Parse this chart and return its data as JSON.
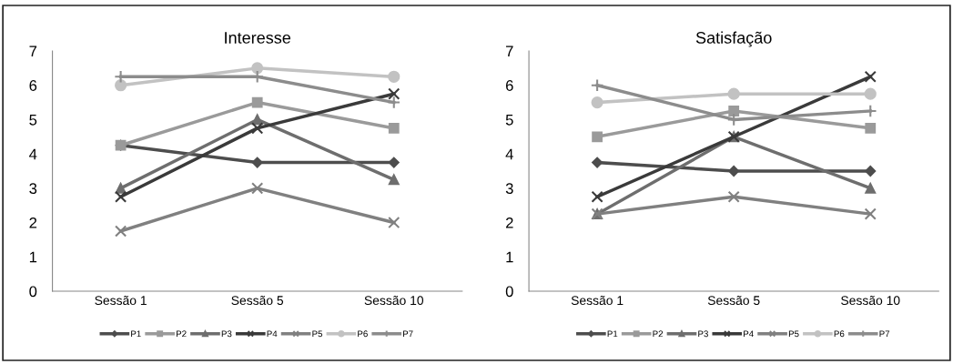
{
  "chart_data": [
    {
      "type": "line",
      "title": "Interesse",
      "categories": [
        "Sessão 1",
        "Sessão 5",
        "Sessão 10"
      ],
      "ylim": [
        0,
        7
      ],
      "yticks": [
        0,
        1,
        2,
        3,
        4,
        5,
        6,
        7
      ],
      "grid": false,
      "legend": "bottom",
      "series": [
        {
          "name": "P1",
          "color": "#4d4d4d",
          "marker": "diamond",
          "values": [
            4.25,
            3.75,
            3.75
          ]
        },
        {
          "name": "P2",
          "color": "#9a9a9a",
          "marker": "square",
          "values": [
            4.25,
            5.5,
            4.75
          ]
        },
        {
          "name": "P3",
          "color": "#6e6e6e",
          "marker": "triangle",
          "values": [
            3,
            5,
            3.25
          ]
        },
        {
          "name": "P4",
          "color": "#3a3a3a",
          "marker": "cross",
          "values": [
            2.75,
            4.75,
            5.75
          ]
        },
        {
          "name": "P5",
          "color": "#808080",
          "marker": "cross",
          "values": [
            1.75,
            3,
            2
          ]
        },
        {
          "name": "P6",
          "color": "#c2c2c2",
          "marker": "circle",
          "values": [
            6,
            6.5,
            6.25
          ]
        },
        {
          "name": "P7",
          "color": "#8c8c8c",
          "marker": "plus",
          "values": [
            6.25,
            6.25,
            5.5
          ]
        }
      ]
    },
    {
      "type": "line",
      "title": "Satisfação",
      "categories": [
        "Sessão 1",
        "Sessão 5",
        "Sessão 10"
      ],
      "ylim": [
        0,
        7
      ],
      "yticks": [
        0,
        1,
        2,
        3,
        4,
        5,
        6,
        7
      ],
      "grid": false,
      "legend": "bottom",
      "series": [
        {
          "name": "P1",
          "color": "#4d4d4d",
          "marker": "diamond",
          "values": [
            3.75,
            3.5,
            3.5
          ]
        },
        {
          "name": "P2",
          "color": "#9a9a9a",
          "marker": "square",
          "values": [
            4.5,
            5.25,
            4.75
          ]
        },
        {
          "name": "P3",
          "color": "#6e6e6e",
          "marker": "triangle",
          "values": [
            2.25,
            4.5,
            3
          ]
        },
        {
          "name": "P4",
          "color": "#3a3a3a",
          "marker": "cross",
          "values": [
            2.75,
            4.5,
            6.25
          ]
        },
        {
          "name": "P5",
          "color": "#808080",
          "marker": "cross",
          "values": [
            2.25,
            2.75,
            2.25
          ]
        },
        {
          "name": "P6",
          "color": "#c2c2c2",
          "marker": "circle",
          "values": [
            5.5,
            5.75,
            5.75
          ]
        },
        {
          "name": "P7",
          "color": "#8c8c8c",
          "marker": "plus",
          "values": [
            6,
            5,
            5.25
          ]
        }
      ]
    }
  ]
}
